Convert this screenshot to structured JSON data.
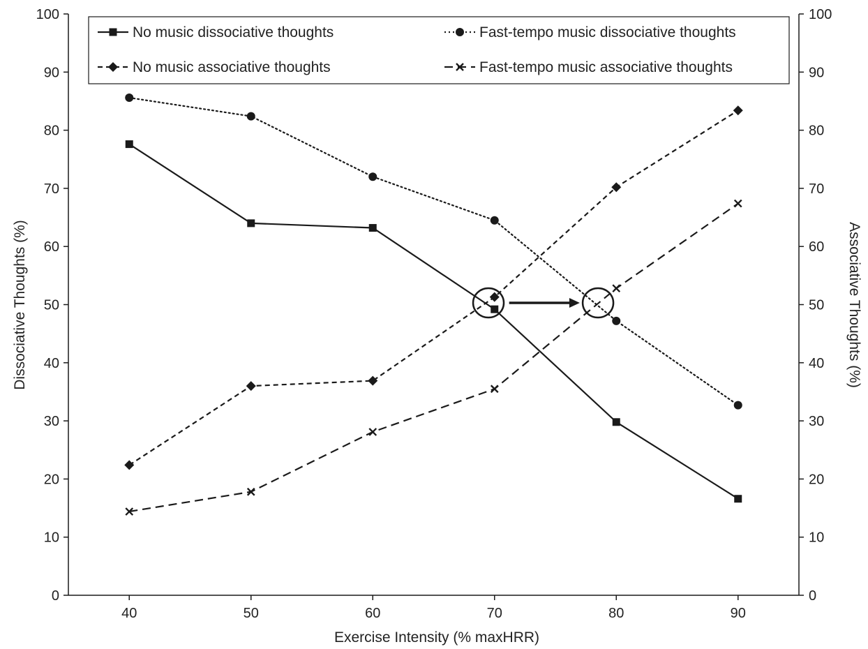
{
  "chart_data": {
    "type": "line",
    "xlabel": "Exercise Intensity (% maxHRR)",
    "ylabel_left": "Dissociative Thoughts (%)",
    "ylabel_right": "Associative Thoughts (%)",
    "x": [
      40,
      50,
      60,
      70,
      80,
      90
    ],
    "x_ticks": [
      "40",
      "50",
      "60",
      "70",
      "80",
      "90"
    ],
    "xlim": [
      35,
      95
    ],
    "ylim": [
      0,
      100
    ],
    "y_ticks": [
      "0",
      "10",
      "20",
      "30",
      "40",
      "50",
      "60",
      "70",
      "80",
      "90",
      "100"
    ],
    "grid": false,
    "legend_position": "top",
    "series": [
      {
        "name": "No music dissociative thoughts",
        "values": [
          77.6,
          64.0,
          63.2,
          49.2,
          29.8,
          16.6
        ],
        "line": "solid",
        "marker": "square",
        "axis": "left",
        "color": "#1a1a1a"
      },
      {
        "name": "Fast-tempo music dissociative thoughts",
        "values": [
          85.6,
          82.4,
          72.0,
          64.5,
          47.2,
          32.7
        ],
        "line": "dotted",
        "marker": "circle",
        "axis": "left",
        "color": "#1a1a1a"
      },
      {
        "name": "No music associative thoughts",
        "values": [
          22.4,
          36.0,
          36.9,
          51.3,
          70.2,
          83.4
        ],
        "line": "dashed",
        "marker": "diamond",
        "axis": "right",
        "color": "#1a1a1a"
      },
      {
        "name": "Fast-tempo music associative thoughts",
        "values": [
          14.4,
          17.8,
          28.1,
          35.5,
          52.8,
          67.4
        ],
        "line": "long-dashed",
        "marker": "x",
        "axis": "right",
        "color": "#1a1a1a"
      }
    ],
    "annotations": [
      {
        "type": "circle",
        "x": 69.5,
        "y": 50.3
      },
      {
        "type": "circle",
        "x": 78.5,
        "y": 50.3
      },
      {
        "type": "arrow",
        "from": [
          71.2,
          50.3
        ],
        "to": [
          77.0,
          50.3
        ]
      }
    ]
  }
}
